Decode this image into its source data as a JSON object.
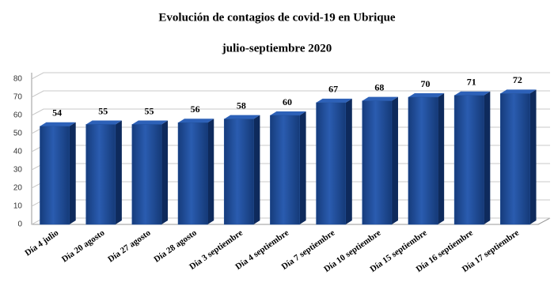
{
  "chart_data": {
    "type": "bar",
    "title": "Evolución de contagios de covid-19 en Ubrique",
    "subtitle": "julio-septiembre 2020",
    "categories": [
      "Día 4 julio",
      "Día 20 agosto",
      "Día 27 agosto",
      "Día 28 agosto",
      "Día 3 septiembre",
      "Día 4 septiembre",
      "Día 7 septiembre",
      "Día 10 septiembre",
      "Día 15 septiembre",
      "Día 16 septiembre",
      "Día 17 septiembre"
    ],
    "values": [
      54,
      55,
      55,
      56,
      58,
      60,
      67,
      68,
      70,
      71,
      72
    ],
    "color": "#1f4e9a",
    "ylim": [
      0,
      80
    ],
    "yticks": [
      0,
      10,
      20,
      30,
      40,
      50,
      60,
      70,
      80
    ],
    "grid": true
  }
}
